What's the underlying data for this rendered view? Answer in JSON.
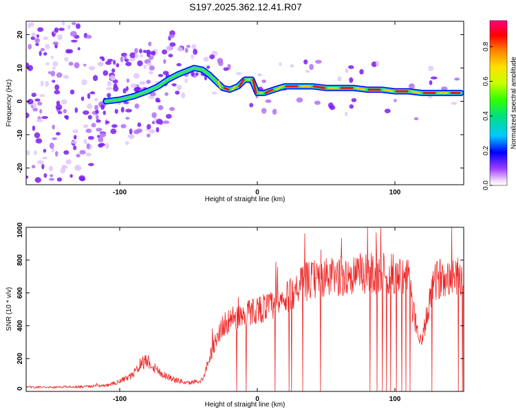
{
  "title": "S197.2025.362.12.41.R07",
  "colors": {
    "snr_line": "#ee2222",
    "ridge_edge": "#0000ee",
    "ridge_core": "#ee1111",
    "scatter": "#7722ee"
  },
  "chart_data": [
    {
      "type": "heatmap",
      "name": "spectrogram",
      "xlabel": "Height of straight line (km)",
      "ylabel": "Frequency (Hz)",
      "xlim": [
        -168,
        150
      ],
      "ylim": [
        -25,
        24
      ],
      "x_ticks": [
        -100,
        0,
        100
      ],
      "x_tick_labels": [
        "-100",
        "0",
        "100"
      ],
      "y_ticks": [
        20,
        10,
        0,
        -10,
        -20
      ],
      "y_tick_labels": [
        "20",
        "10",
        "0",
        "-10",
        "-20"
      ],
      "ridge": {
        "x": [
          -110,
          -100,
          -90,
          -80,
          -72,
          -65,
          -58,
          -52,
          -46,
          -40,
          -35,
          -30,
          -25,
          -20,
          -14,
          -9,
          -4,
          0,
          5,
          12,
          20,
          30,
          40,
          50,
          60,
          70,
          80,
          90,
          100,
          110,
          120,
          130,
          140,
          148
        ],
        "y": [
          0,
          0.5,
          1.5,
          3,
          4.5,
          6.5,
          8,
          9,
          10,
          9.5,
          8,
          6,
          4,
          3.5,
          4.5,
          6.5,
          6.5,
          2.5,
          2.5,
          3.5,
          4.5,
          4.5,
          4.5,
          4,
          4,
          4,
          3.5,
          3.5,
          3,
          3,
          2.5,
          2.5,
          2.5,
          2.5
        ]
      },
      "colorbar": {
        "label": "Normalized spectral amplitude",
        "range": [
          0.0,
          0.95
        ],
        "ticks": [
          0.0,
          0.2,
          0.4,
          0.6,
          0.8
        ],
        "tick_labels": [
          "0.0",
          "0.2",
          "0.4",
          "0.6",
          "0.8"
        ]
      }
    },
    {
      "type": "line",
      "name": "snr",
      "xlabel": "Height of straight line (km)",
      "ylabel": "SNR (10 * v/v)",
      "xlim": [
        -168,
        150
      ],
      "ylim": [
        0,
        1000
      ],
      "x_ticks": [
        -100,
        0,
        100
      ],
      "x_tick_labels": [
        "-100",
        "0",
        "100"
      ],
      "y_ticks": [
        0,
        200,
        400,
        600,
        800,
        1000
      ],
      "y_tick_labels": [
        "0",
        "200",
        "400",
        "600",
        "800",
        "1000"
      ],
      "envelope": {
        "x": [
          -168,
          -130,
          -110,
          -100,
          -90,
          -85,
          -80,
          -75,
          -70,
          -60,
          -50,
          -40,
          -35,
          -30,
          -25,
          -20,
          -10,
          0,
          10,
          20,
          25,
          30,
          40,
          60,
          80,
          90,
          100,
          110,
          113,
          118,
          120,
          125,
          130,
          140,
          150
        ],
        "y": [
          25,
          28,
          35,
          60,
          100,
          170,
          190,
          150,
          110,
          70,
          50,
          70,
          200,
          320,
          400,
          430,
          470,
          500,
          520,
          550,
          600,
          650,
          680,
          700,
          720,
          720,
          710,
          680,
          500,
          320,
          300,
          550,
          680,
          720,
          700
        ]
      },
      "dropouts_x": [
        -15,
        -8,
        13,
        23,
        25,
        33,
        46,
        82,
        87,
        91,
        94,
        97,
        101,
        105,
        108,
        111,
        127,
        146,
        149
      ]
    }
  ]
}
